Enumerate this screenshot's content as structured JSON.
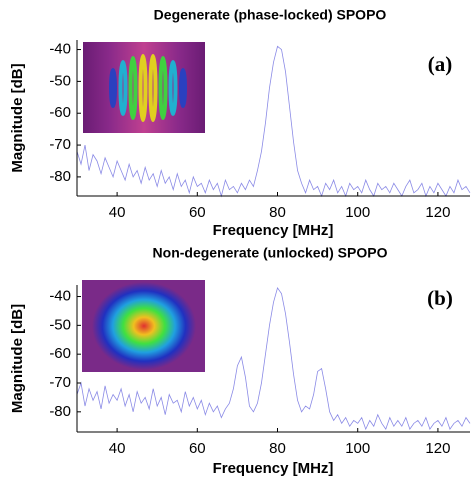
{
  "chart_data": [
    {
      "type": "line",
      "title": "Degenerate (phase-locked) SPOPO",
      "xlabel": "Frequency [MHz]",
      "ylabel": "Magnitude [dB]",
      "annotation": "(a)",
      "xlim": [
        30,
        128
      ],
      "ylim": [
        -86,
        -37
      ],
      "xticks": [
        40,
        60,
        80,
        100,
        120
      ],
      "yticks": [
        -40,
        -50,
        -60,
        -70,
        -80
      ],
      "x": [
        30,
        31,
        32,
        33,
        34,
        35,
        36,
        37,
        38,
        39,
        40,
        41,
        42,
        43,
        44,
        45,
        46,
        47,
        48,
        49,
        50,
        51,
        52,
        53,
        54,
        55,
        56,
        57,
        58,
        59,
        60,
        61,
        62,
        63,
        64,
        65,
        66,
        67,
        68,
        69,
        70,
        71,
        72,
        73,
        74,
        75,
        76,
        77,
        78,
        79,
        80,
        81,
        82,
        83,
        84,
        85,
        86,
        87,
        88,
        89,
        90,
        91,
        92,
        93,
        94,
        95,
        96,
        97,
        98,
        99,
        100,
        101,
        102,
        103,
        104,
        105,
        106,
        107,
        108,
        109,
        110,
        111,
        112,
        113,
        114,
        115,
        116,
        117,
        118,
        119,
        120,
        121,
        122,
        123,
        124,
        125,
        126,
        127,
        128
      ],
      "series": [
        {
          "color": "#8a8ae6",
          "values": [
            -72,
            -76,
            -70,
            -78,
            -73,
            -75,
            -79,
            -74,
            -77,
            -80,
            -75,
            -78,
            -81,
            -76,
            -80,
            -78,
            -82,
            -77,
            -81,
            -79,
            -83,
            -78,
            -82,
            -80,
            -84,
            -79,
            -83,
            -81,
            -85,
            -80,
            -83,
            -82,
            -85,
            -81,
            -84,
            -82,
            -86,
            -81,
            -84,
            -83,
            -85,
            -82,
            -84,
            -81,
            -83,
            -78,
            -72,
            -63,
            -52,
            -44,
            -39,
            -40,
            -47,
            -58,
            -69,
            -78,
            -82,
            -85,
            -81,
            -84,
            -83,
            -86,
            -82,
            -84,
            -81,
            -85,
            -83,
            -86,
            -82,
            -84,
            -83,
            -85,
            -81,
            -84,
            -86,
            -82,
            -84,
            -83,
            -85,
            -82,
            -84,
            -86,
            -83,
            -81,
            -85,
            -84,
            -82,
            -86,
            -83,
            -85,
            -82,
            -84,
            -86,
            -83,
            -85,
            -81,
            -84,
            -83,
            -85
          ]
        }
      ]
    },
    {
      "type": "line",
      "title": "Non-degenerate (unlocked) SPOPO",
      "xlabel": "Frequency [MHz]",
      "ylabel": "Magnitude [dB]",
      "annotation": "(b)",
      "xlim": [
        30,
        128
      ],
      "ylim": [
        -87,
        -36
      ],
      "xticks": [
        40,
        60,
        80,
        100,
        120
      ],
      "yticks": [
        -40,
        -50,
        -60,
        -70,
        -80
      ],
      "x": [
        30,
        31,
        32,
        33,
        34,
        35,
        36,
        37,
        38,
        39,
        40,
        41,
        42,
        43,
        44,
        45,
        46,
        47,
        48,
        49,
        50,
        51,
        52,
        53,
        54,
        55,
        56,
        57,
        58,
        59,
        60,
        61,
        62,
        63,
        64,
        65,
        66,
        67,
        68,
        69,
        70,
        71,
        72,
        73,
        74,
        75,
        76,
        77,
        78,
        79,
        80,
        81,
        82,
        83,
        84,
        85,
        86,
        87,
        88,
        89,
        90,
        91,
        92,
        93,
        94,
        95,
        96,
        97,
        98,
        99,
        100,
        101,
        102,
        103,
        104,
        105,
        106,
        107,
        108,
        109,
        110,
        111,
        112,
        113,
        114,
        115,
        116,
        117,
        118,
        119,
        120,
        121,
        122,
        123,
        124,
        125,
        126,
        127,
        128
      ],
      "series": [
        {
          "color": "#8a8ae6",
          "values": [
            -74,
            -70,
            -78,
            -72,
            -76,
            -73,
            -79,
            -71,
            -77,
            -74,
            -76,
            -72,
            -78,
            -74,
            -80,
            -73,
            -77,
            -75,
            -79,
            -72,
            -78,
            -75,
            -81,
            -74,
            -77,
            -76,
            -80,
            -73,
            -78,
            -75,
            -79,
            -76,
            -81,
            -77,
            -80,
            -78,
            -82,
            -79,
            -77,
            -72,
            -64,
            -61,
            -68,
            -78,
            -80,
            -77,
            -70,
            -60,
            -50,
            -42,
            -37,
            -39,
            -46,
            -56,
            -67,
            -76,
            -80,
            -78,
            -79,
            -74,
            -66,
            -65,
            -72,
            -80,
            -83,
            -81,
            -84,
            -82,
            -85,
            -83,
            -84,
            -82,
            -86,
            -83,
            -85,
            -81,
            -84,
            -86,
            -82,
            -85,
            -83,
            -85,
            -82,
            -86,
            -84,
            -83,
            -85,
            -82,
            -86,
            -84,
            -83,
            -85,
            -82,
            -86,
            -84,
            -83,
            -85,
            -82,
            -84
          ]
        }
      ]
    }
  ]
}
